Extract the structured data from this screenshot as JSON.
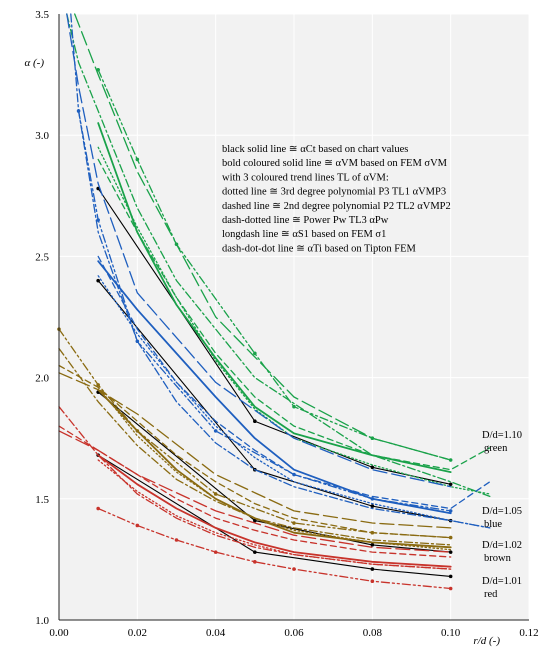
{
  "chart_data": {
    "type": "line",
    "xlabel": "r/d (-)",
    "ylabel": "α (-)",
    "xlim": [
      0.0,
      0.12
    ],
    "ylim": [
      1.0,
      3.5
    ],
    "xticks": [
      "0.00",
      "0.02",
      "0.04",
      "0.06",
      "0.08",
      "0.10",
      "0.12"
    ],
    "yticks": [
      "1.0",
      "1.5",
      "2.0",
      "2.5",
      "3.0",
      "3.5"
    ],
    "grid": true,
    "legend_position": "top-right",
    "legend_text": [
      "black solid line ≅ αCt based on chart values",
      "bold coloured solid line ≅ αVM based on FEM σVM",
      "with 3 coloured trend lines TL of αVM:",
      "dotted line ≅ 3rd degree polynomial P3 TL1 αVMP3",
      "dashed line ≅ 2nd degree polynomial P2 TL2 αVMP2",
      "dash-dotted line ≅ Power Pw TL3 αPw",
      "longdash line ≅ αS1 based on FEM σ1",
      "dash-dot-dot line ≅ αTi based on Tipton FEM"
    ],
    "curve_labels": [
      {
        "ratio": "D/d=1.10",
        "color_name": "green",
        "color": "#1aa24a"
      },
      {
        "ratio": "D/d=1.05",
        "color_name": "blue",
        "color": "#1f5fbf"
      },
      {
        "ratio": "D/d=1.02",
        "color_name": "brown",
        "color": "#8a6b12"
      },
      {
        "ratio": "D/d=1.01",
        "color_name": "red",
        "color": "#c8332b"
      }
    ],
    "groups": [
      {
        "group": "green",
        "color": "#1aa24a",
        "series": [
          {
            "style": "black-solid",
            "x": [
              0.01,
              0.05,
              0.08,
              0.1
            ],
            "y": [
              2.78,
              1.82,
              1.63,
              1.56
            ]
          },
          {
            "style": "solid",
            "x": [
              0.01,
              0.02,
              0.03,
              0.04,
              0.05,
              0.06,
              0.08,
              0.1
            ],
            "y": [
              3.05,
              2.6,
              2.3,
              2.08,
              1.88,
              1.77,
              1.68,
              1.61
            ]
          },
          {
            "style": "dotted",
            "x": [
              0.01,
              0.02,
              0.03,
              0.04,
              0.05,
              0.06,
              0.08,
              0.1,
              0.11
            ],
            "y": [
              2.95,
              2.62,
              2.33,
              2.07,
              1.87,
              1.75,
              1.64,
              1.55,
              1.52
            ]
          },
          {
            "style": "dashed",
            "x": [
              0.01,
              0.02,
              0.03,
              0.04,
              0.05,
              0.06,
              0.08,
              0.1,
              0.11
            ],
            "y": [
              2.9,
              2.6,
              2.33,
              2.1,
              1.92,
              1.8,
              1.68,
              1.62,
              1.71
            ]
          },
          {
            "style": "dash-dotted",
            "x": [
              0.002,
              0.005,
              0.01,
              0.02,
              0.03,
              0.05,
              0.08,
              0.1,
              0.11
            ],
            "y": [
              3.5,
              3.3,
              3.1,
              2.7,
              2.4,
              2.0,
              1.68,
              1.57,
              1.51
            ]
          },
          {
            "style": "longdash",
            "x": [
              0.004,
              0.01,
              0.02,
              0.04,
              0.06,
              0.08,
              0.1
            ],
            "y": [
              3.5,
              3.25,
              2.85,
              2.25,
              1.92,
              1.75,
              1.66
            ]
          },
          {
            "style": "dash-dot-dot",
            "x": [
              0.01,
              0.02,
              0.03,
              0.05,
              0.06,
              0.08,
              0.1
            ],
            "y": [
              3.27,
              2.9,
              2.55,
              2.1,
              1.88,
              1.75,
              1.66
            ]
          }
        ]
      },
      {
        "group": "blue",
        "color": "#1f5fbf",
        "series": [
          {
            "style": "black-solid",
            "x": [
              0.01,
              0.05,
              0.08,
              0.1
            ],
            "y": [
              2.4,
              1.62,
              1.47,
              1.41
            ]
          },
          {
            "style": "solid",
            "x": [
              0.01,
              0.02,
              0.03,
              0.04,
              0.05,
              0.06,
              0.08,
              0.1
            ],
            "y": [
              2.48,
              2.28,
              2.1,
              1.92,
              1.75,
              1.62,
              1.5,
              1.44
            ]
          },
          {
            "style": "dotted",
            "x": [
              0.01,
              0.02,
              0.03,
              0.04,
              0.05,
              0.06,
              0.08,
              0.1,
              0.11
            ],
            "y": [
              2.42,
              2.18,
              1.98,
              1.8,
              1.67,
              1.57,
              1.48,
              1.41,
              1.38
            ]
          },
          {
            "style": "dashed",
            "x": [
              0.01,
              0.02,
              0.03,
              0.04,
              0.05,
              0.06,
              0.08,
              0.1,
              0.11
            ],
            "y": [
              2.5,
              2.2,
              1.98,
              1.82,
              1.7,
              1.6,
              1.51,
              1.46,
              1.57
            ]
          },
          {
            "style": "dash-dotted",
            "x": [
              0.003,
              0.005,
              0.01,
              0.02,
              0.03,
              0.04,
              0.05,
              0.06,
              0.08,
              0.1,
              0.11
            ],
            "y": [
              3.5,
              3.1,
              2.6,
              2.15,
              1.9,
              1.73,
              1.62,
              1.55,
              1.46,
              1.41,
              1.38
            ]
          },
          {
            "style": "longdash",
            "x": [
              0.002,
              0.005,
              0.01,
              0.02,
              0.04,
              0.06,
              0.08,
              0.1
            ],
            "y": [
              3.5,
              3.2,
              2.8,
              2.35,
              1.98,
              1.75,
              1.62,
              1.55
            ]
          },
          {
            "style": "dash-dot-dot",
            "x": [
              0.005,
              0.01,
              0.02,
              0.04,
              0.06,
              0.08,
              0.1
            ],
            "y": [
              3.1,
              2.65,
              2.15,
              1.78,
              1.6,
              1.5,
              1.45
            ]
          }
        ]
      },
      {
        "group": "brown",
        "color": "#8a6b12",
        "series": [
          {
            "style": "black-solid",
            "x": [
              0.01,
              0.05,
              0.08,
              0.1
            ],
            "y": [
              1.94,
              1.41,
              1.31,
              1.28
            ]
          },
          {
            "style": "solid",
            "x": [
              0.01,
              0.02,
              0.03,
              0.04,
              0.05,
              0.06,
              0.08,
              0.1
            ],
            "y": [
              1.95,
              1.78,
              1.62,
              1.5,
              1.42,
              1.36,
              1.32,
              1.3
            ]
          },
          {
            "style": "dotted",
            "x": [
              0.01,
              0.02,
              0.03,
              0.04,
              0.05,
              0.06,
              0.08,
              0.1
            ],
            "y": [
              1.96,
              1.76,
              1.61,
              1.5,
              1.42,
              1.37,
              1.32,
              1.29
            ]
          },
          {
            "style": "dashed",
            "x": [
              0.0,
              0.01,
              0.02,
              0.03,
              0.04,
              0.05,
              0.06,
              0.08,
              0.1
            ],
            "y": [
              2.05,
              1.96,
              1.82,
              1.68,
              1.57,
              1.48,
              1.42,
              1.36,
              1.34
            ]
          },
          {
            "style": "dash-dotted",
            "x": [
              0.0,
              0.01,
              0.02,
              0.03,
              0.04,
              0.05,
              0.06,
              0.08,
              0.1
            ],
            "y": [
              2.12,
              1.9,
              1.72,
              1.58,
              1.49,
              1.42,
              1.38,
              1.33,
              1.31
            ]
          },
          {
            "style": "longdash",
            "x": [
              0.0,
              0.01,
              0.02,
              0.04,
              0.06,
              0.08,
              0.1
            ],
            "y": [
              2.02,
              1.95,
              1.85,
              1.6,
              1.45,
              1.4,
              1.38
            ]
          },
          {
            "style": "dash-dot-dot",
            "x": [
              0.0,
              0.01,
              0.02,
              0.04,
              0.06,
              0.08,
              0.1
            ],
            "y": [
              2.2,
              1.97,
              1.78,
              1.52,
              1.4,
              1.36,
              1.34
            ]
          }
        ]
      },
      {
        "group": "red",
        "color": "#c8332b",
        "series": [
          {
            "style": "black-solid",
            "x": [
              0.01,
              0.05,
              0.08,
              0.1
            ],
            "y": [
              1.68,
              1.28,
              1.21,
              1.18
            ]
          },
          {
            "style": "solid",
            "x": [
              0.01,
              0.02,
              0.03,
              0.04,
              0.05,
              0.06,
              0.08,
              0.1
            ],
            "y": [
              1.68,
              1.56,
              1.46,
              1.38,
              1.32,
              1.28,
              1.24,
              1.22
            ]
          },
          {
            "style": "dotted",
            "x": [
              0.01,
              0.02,
              0.03,
              0.04,
              0.05,
              0.06,
              0.08,
              0.1
            ],
            "y": [
              1.66,
              1.53,
              1.43,
              1.36,
              1.31,
              1.27,
              1.23,
              1.21
            ]
          },
          {
            "style": "dashed",
            "x": [
              0.0,
              0.01,
              0.02,
              0.03,
              0.04,
              0.05,
              0.06,
              0.08,
              0.1
            ],
            "y": [
              1.8,
              1.7,
              1.6,
              1.5,
              1.42,
              1.37,
              1.33,
              1.28,
              1.26
            ]
          },
          {
            "style": "dash-dotted",
            "x": [
              0.0,
              0.01,
              0.02,
              0.03,
              0.04,
              0.05,
              0.06,
              0.08,
              0.1
            ],
            "y": [
              1.88,
              1.68,
              1.52,
              1.42,
              1.35,
              1.3,
              1.27,
              1.23,
              1.21
            ]
          },
          {
            "style": "longdash",
            "x": [
              0.0,
              0.01,
              0.02,
              0.04,
              0.06,
              0.08,
              0.1
            ],
            "y": [
              1.78,
              1.7,
              1.6,
              1.45,
              1.35,
              1.3,
              1.28
            ]
          },
          {
            "style": "dash-dot-dot",
            "x": [
              0.01,
              0.02,
              0.03,
              0.04,
              0.05,
              0.06,
              0.08,
              0.1
            ],
            "y": [
              1.46,
              1.39,
              1.33,
              1.28,
              1.24,
              1.21,
              1.16,
              1.13
            ]
          }
        ]
      }
    ]
  }
}
